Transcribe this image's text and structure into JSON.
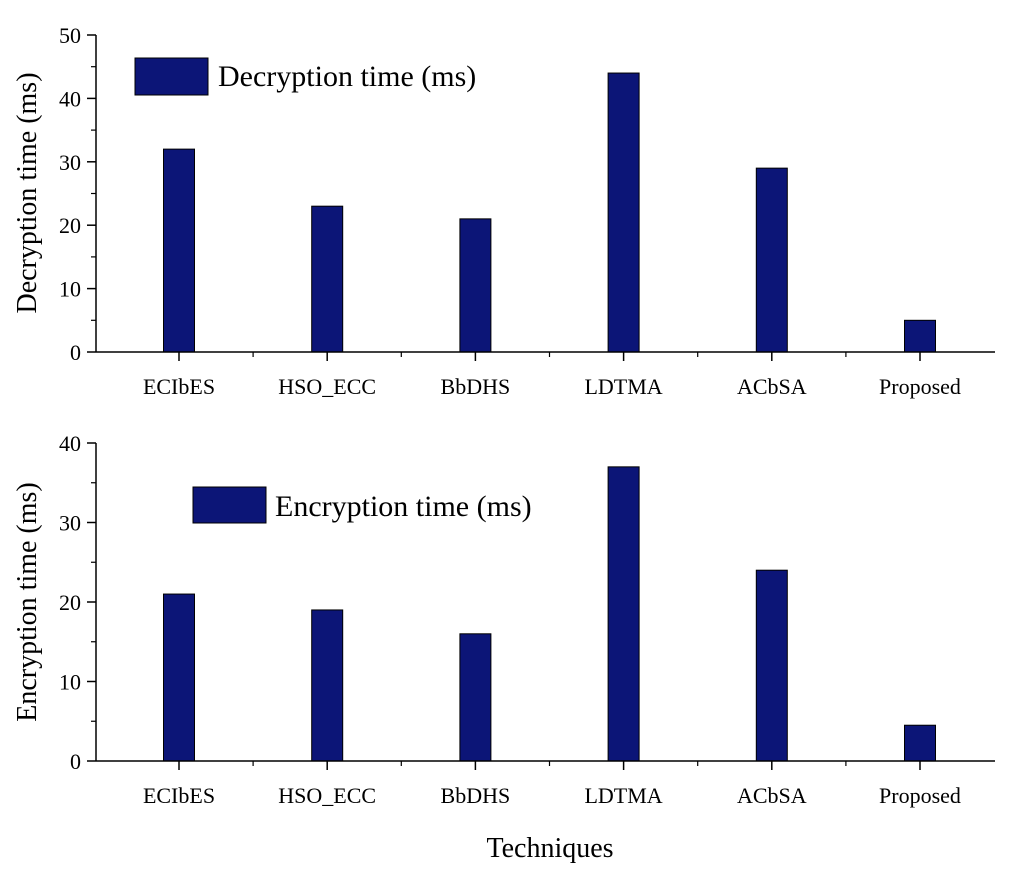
{
  "colors": {
    "bar": "#0c1577",
    "axis": "#000000"
  },
  "charts": [
    {
      "type": "bar",
      "ylabel": "Decryption time (ms)",
      "legend": "Decryption time (ms)",
      "legend_position": "top-left",
      "categories": [
        "ECIbES",
        "HSO_ECC",
        "BbDHS",
        "LDTMA",
        "ACbSA",
        "Proposed"
      ],
      "values": [
        32,
        23,
        21,
        44,
        29,
        5
      ],
      "ylim": [
        0,
        50
      ],
      "yticks": [
        0,
        10,
        20,
        30,
        40,
        50
      ]
    },
    {
      "type": "bar",
      "ylabel": "Encryption time (ms)",
      "legend": "Encryption time (ms)",
      "legend_position": "top-left",
      "categories": [
        "ECIbES",
        "HSO_ECC",
        "BbDHS",
        "LDTMA",
        "ACbSA",
        "Proposed"
      ],
      "values": [
        21,
        19,
        16,
        37,
        24,
        4.5
      ],
      "ylim": [
        0,
        40
      ],
      "yticks": [
        0,
        10,
        20,
        30,
        40
      ]
    }
  ],
  "xlabel": "Techniques",
  "chart_data": [
    {
      "type": "bar",
      "categories": [
        "ECIbES",
        "HSO_ECC",
        "BbDHS",
        "LDTMA",
        "ACbSA",
        "Proposed"
      ],
      "series": [
        {
          "name": "Decryption time (ms)",
          "values": [
            32,
            23,
            21,
            44,
            29,
            5
          ]
        }
      ],
      "xlabel": "",
      "ylabel": "Decryption time (ms)",
      "ylim": [
        0,
        50
      ],
      "grid": false,
      "legend": "top-left"
    },
    {
      "type": "bar",
      "categories": [
        "ECIbES",
        "HSO_ECC",
        "BbDHS",
        "LDTMA",
        "ACbSA",
        "Proposed"
      ],
      "series": [
        {
          "name": "Encryption time (ms)",
          "values": [
            21,
            19,
            16,
            37,
            24,
            4.5
          ]
        }
      ],
      "xlabel": "Techniques",
      "ylabel": "Encryption time (ms)",
      "ylim": [
        0,
        40
      ],
      "grid": false,
      "legend": "top-left"
    }
  ]
}
